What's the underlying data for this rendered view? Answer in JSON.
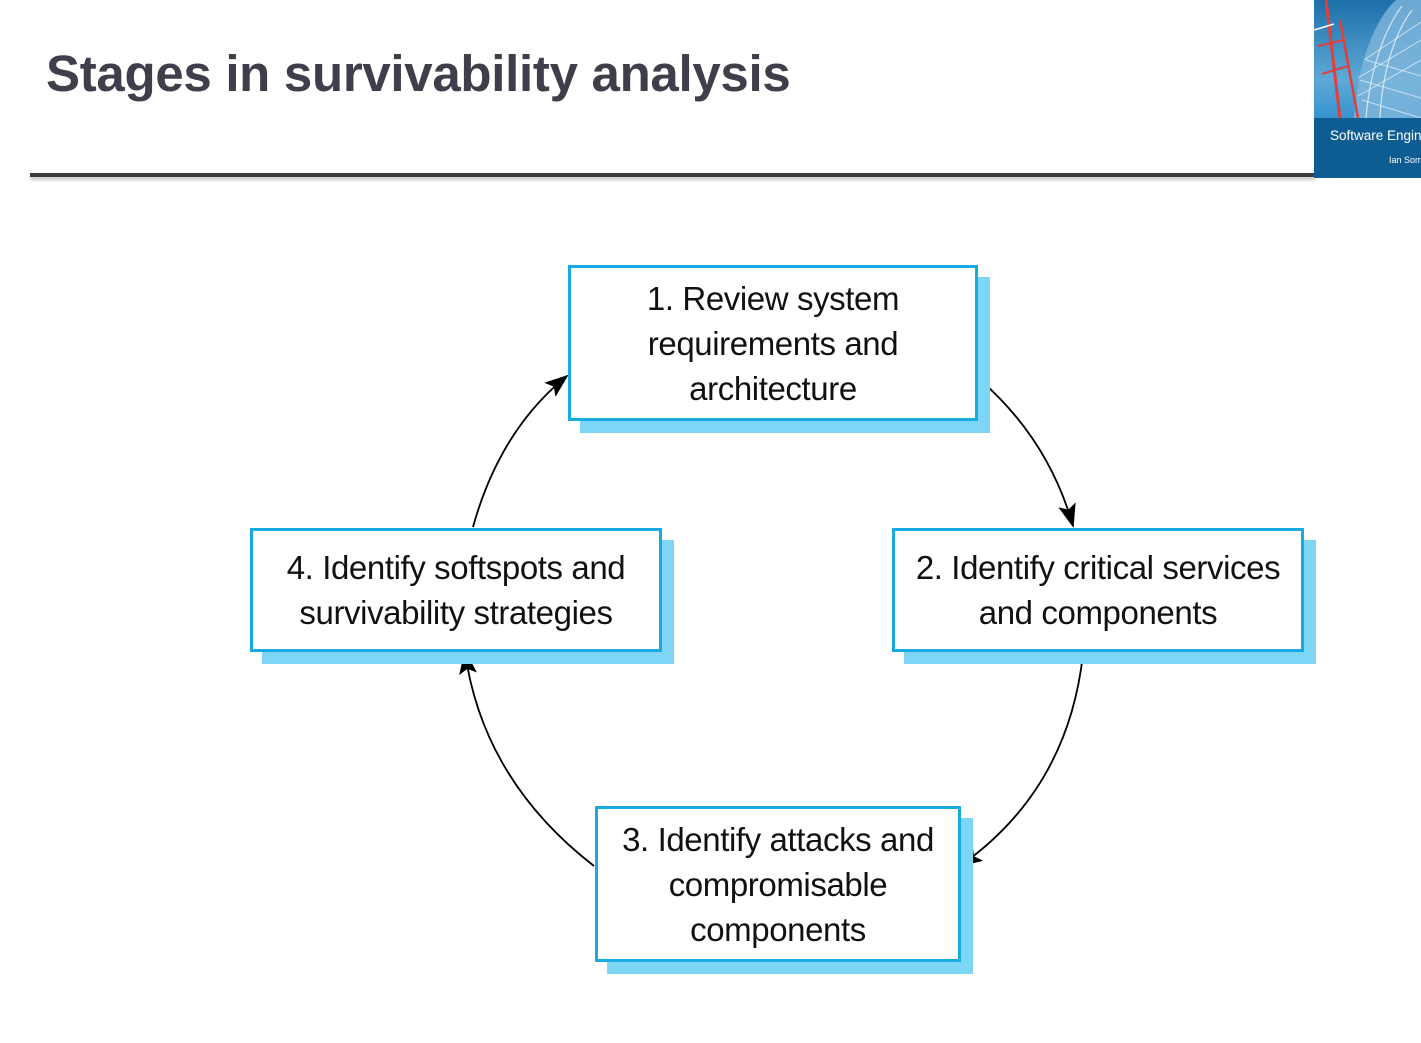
{
  "slide": {
    "title": "Stages in survivability analysis"
  },
  "book_cover": {
    "title": "Software Engineering",
    "author": "Ian Sommerville"
  },
  "diagram": {
    "stages": [
      {
        "label": "1. Review system\nrequirements and\narchitecture"
      },
      {
        "label": "2. Identify critical services\nand components"
      },
      {
        "label": "3. Identify attacks and\ncompromisable\ncomponents"
      },
      {
        "label": "4. Identify softspots and\nsurvivability strategies"
      }
    ],
    "colors": {
      "box_border": "#1aaae2",
      "box_shadow": "#7dd6f6",
      "arrow": "#000000",
      "title_text": "#3f3e4a"
    }
  }
}
